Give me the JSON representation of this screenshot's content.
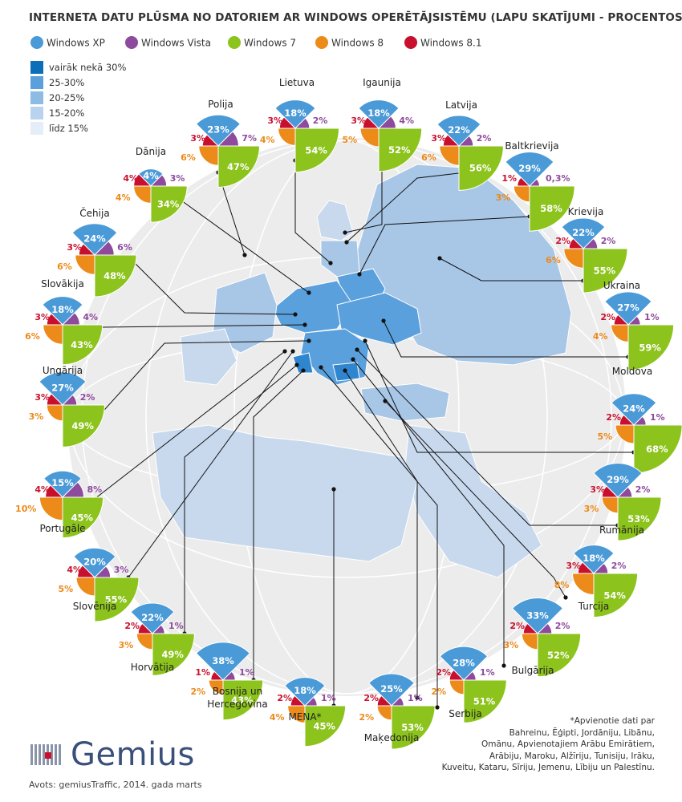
{
  "title": "INTERNETA DATU PLŪSMA NO DATORIEM AR WINDOWS OPERĒTĀJSISTĒMU (LAPU SKATĪJUMI - PROCENTOS)",
  "source": "Avots: gemiusTraffic, 2014. gada marts",
  "logo_text": "Gemius",
  "note_lines": [
    "*Apvienotie dati par",
    "Bahreinu, Ēģipti, Jordāniju, Libānu,",
    "Omānu, Apvienotajiem Arābu Emirātiem,",
    "Arābiju, Maroku, Alžīriju, Tunisiju, Irāku,",
    "Kuveitu, Kataru, Sīriju, Jemenu, Lībiju un Palestīnu."
  ],
  "colors": {
    "xp": "#4a9ad8",
    "vista": "#8e4a9c",
    "win7": "#8cc31c",
    "win8": "#ec8a1a",
    "win81": "#c8102e",
    "map_main": "#a8c6e6",
    "map_light": "#c8d9ee",
    "map_dark": "#2f86cf",
    "map_mid": "#5aa0dc",
    "globe": "#ececec"
  },
  "chart_data": {
    "type": "pie",
    "series_names": [
      "Windows XP",
      "Windows Vista",
      "Windows 7",
      "Windows 8",
      "Windows 8.1"
    ],
    "legend": [
      "Windows XP",
      "Windows Vista",
      "Windows 7",
      "Windows 8",
      "Windows 8.1"
    ],
    "map_legend": [
      "vairāk nekā 30%",
      "25-30%",
      "20-25%",
      "15-20%",
      "līdz 15%"
    ],
    "countries": [
      {
        "name": "Lietuva",
        "xp": 18,
        "vista": 2,
        "win7": 54,
        "win8": 4,
        "win81": 3,
        "labels": [
          "18%",
          "2%",
          "54%",
          "4%",
          "3%"
        ]
      },
      {
        "name": "Igaunija",
        "xp": 18,
        "vista": 4,
        "win7": 52,
        "win8": 5,
        "win81": 3,
        "labels": [
          "18%",
          "4%",
          "52%",
          "5%",
          "3%"
        ]
      },
      {
        "name": "Latvija",
        "xp": 22,
        "vista": 2,
        "win7": 56,
        "win8": 6,
        "win81": 3,
        "labels": [
          "22%",
          "2%",
          "56%",
          "6%",
          "3%"
        ]
      },
      {
        "name": "Polija",
        "xp": 23,
        "vista": 7,
        "win7": 47,
        "win8": 6,
        "win81": 3,
        "labels": [
          "23%",
          "7%",
          "47%",
          "6%",
          "3%"
        ]
      },
      {
        "name": "Baltkrievija",
        "xp": 29,
        "vista": 0.3,
        "win7": 58,
        "win8": 3,
        "win81": 1,
        "labels": [
          "29%",
          "0,3%",
          "58%",
          "3%",
          "1%"
        ]
      },
      {
        "name": "Dānija",
        "xp": 4,
        "vista": 3,
        "win7": 34,
        "win8": 4,
        "win81": 4,
        "labels": [
          "4%",
          "3%",
          "34%",
          "4%",
          "4%"
        ]
      },
      {
        "name": "Krievija",
        "xp": 22,
        "vista": 2,
        "win7": 55,
        "win8": 6,
        "win81": 2,
        "labels": [
          "22%",
          "2%",
          "55%",
          "6%",
          "2%"
        ]
      },
      {
        "name": "Čehija",
        "xp": 24,
        "vista": 6,
        "win7": 48,
        "win8": 6,
        "win81": 3,
        "labels": [
          "24%",
          "6%",
          "48%",
          "6%",
          "3%"
        ]
      },
      {
        "name": "Ukraina",
        "xp": 27,
        "vista": 1,
        "win7": 59,
        "win8": 4,
        "win81": 2,
        "labels": [
          "27%",
          "1%",
          "59%",
          "4%",
          "2%"
        ]
      },
      {
        "name": "Slovākija",
        "xp": 18,
        "vista": 4,
        "win7": 43,
        "win8": 6,
        "win81": 3,
        "labels": [
          "18%",
          "4%",
          "43%",
          "6%",
          "3%"
        ]
      },
      {
        "name": "Moldova",
        "xp": 24,
        "vista": 1,
        "win7": 68,
        "win8": 5,
        "win81": 2,
        "labels": [
          "24%",
          "1%",
          "68%",
          "5%",
          "2%"
        ]
      },
      {
        "name": "Ungārija",
        "xp": 27,
        "vista": 2,
        "win7": 49,
        "win8": 3,
        "win81": 3,
        "labels": [
          "27%",
          "2%",
          "49%",
          "3%",
          "3%"
        ]
      },
      {
        "name": "Rumānija",
        "xp": 29,
        "vista": 2,
        "win7": 53,
        "win8": 3,
        "win81": 3,
        "labels": [
          "29%",
          "2%",
          "53%",
          "3%",
          "3%"
        ]
      },
      {
        "name": "Portugāle",
        "xp": 15,
        "vista": 8,
        "win7": 45,
        "win8": 10,
        "win81": 4,
        "labels": [
          "15%",
          "8%",
          "45%",
          "10%",
          "4%"
        ]
      },
      {
        "name": "Turcija",
        "xp": 18,
        "vista": 2,
        "win7": 54,
        "win8": 8,
        "win81": 3,
        "labels": [
          "18%",
          "2%",
          "54%",
          "8%",
          "3%"
        ]
      },
      {
        "name": "Slovēnija",
        "xp": 20,
        "vista": 3,
        "win7": 55,
        "win8": 5,
        "win81": 4,
        "labels": [
          "20%",
          "3%",
          "55%",
          "5%",
          "4%"
        ]
      },
      {
        "name": "Bulgārija",
        "xp": 33,
        "vista": 2,
        "win7": 52,
        "win8": 3,
        "win81": 2,
        "labels": [
          "33%",
          "2%",
          "52%",
          "3%",
          "2%"
        ]
      },
      {
        "name": "Horvātija",
        "xp": 22,
        "vista": 1,
        "win7": 49,
        "win8": 3,
        "win81": 2,
        "labels": [
          "22%",
          "1%",
          "49%",
          "3%",
          "2%"
        ]
      },
      {
        "name": "Serbija",
        "xp": 28,
        "vista": 1,
        "win7": 51,
        "win8": 2,
        "win81": 2,
        "labels": [
          "28%",
          "1%",
          "51%",
          "2%",
          "2%"
        ]
      },
      {
        "name": "Bosnija un Hercegovina",
        "xp": 38,
        "vista": 1,
        "win7": 43,
        "win8": 2,
        "win81": 1,
        "labels": [
          "38%",
          "1%",
          "43%",
          "2%",
          "1%"
        ]
      },
      {
        "name": "MENA*",
        "xp": 18,
        "vista": 1,
        "win7": 45,
        "win8": 4,
        "win81": 2,
        "labels": [
          "18%",
          "1%",
          "45%",
          "4%",
          "2%"
        ]
      },
      {
        "name": "Maķedonija",
        "xp": 25,
        "vista": 1,
        "win7": 53,
        "win8": 2,
        "win81": 2,
        "labels": [
          "25%",
          "1%",
          "53%",
          "2%",
          "2%"
        ]
      }
    ]
  }
}
